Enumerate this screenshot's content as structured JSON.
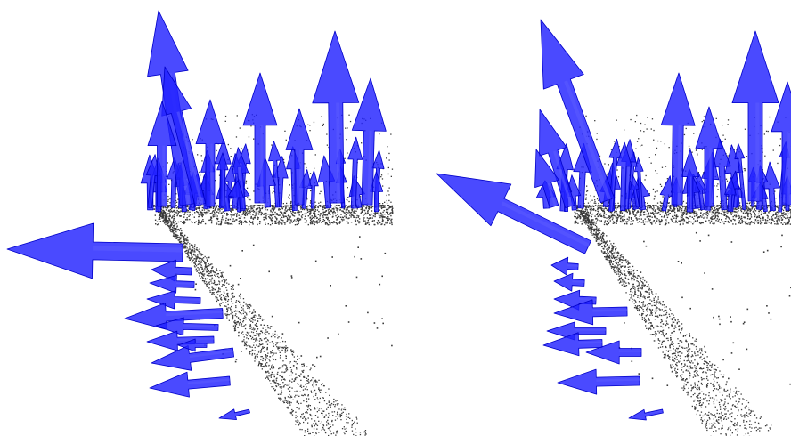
{
  "figure": {
    "panels": [
      {
        "id": "left",
        "normal_style": "edge-normals-splayed"
      },
      {
        "id": "right",
        "normal_style": "edge-normals-diagonal"
      }
    ],
    "colors": {
      "background": "#ffffff",
      "points": "#3a3a3a",
      "arrow_fill": "#2222ff",
      "arrow_stroke": "#0000c8",
      "arrow_highlight": "#5a5aff"
    }
  }
}
